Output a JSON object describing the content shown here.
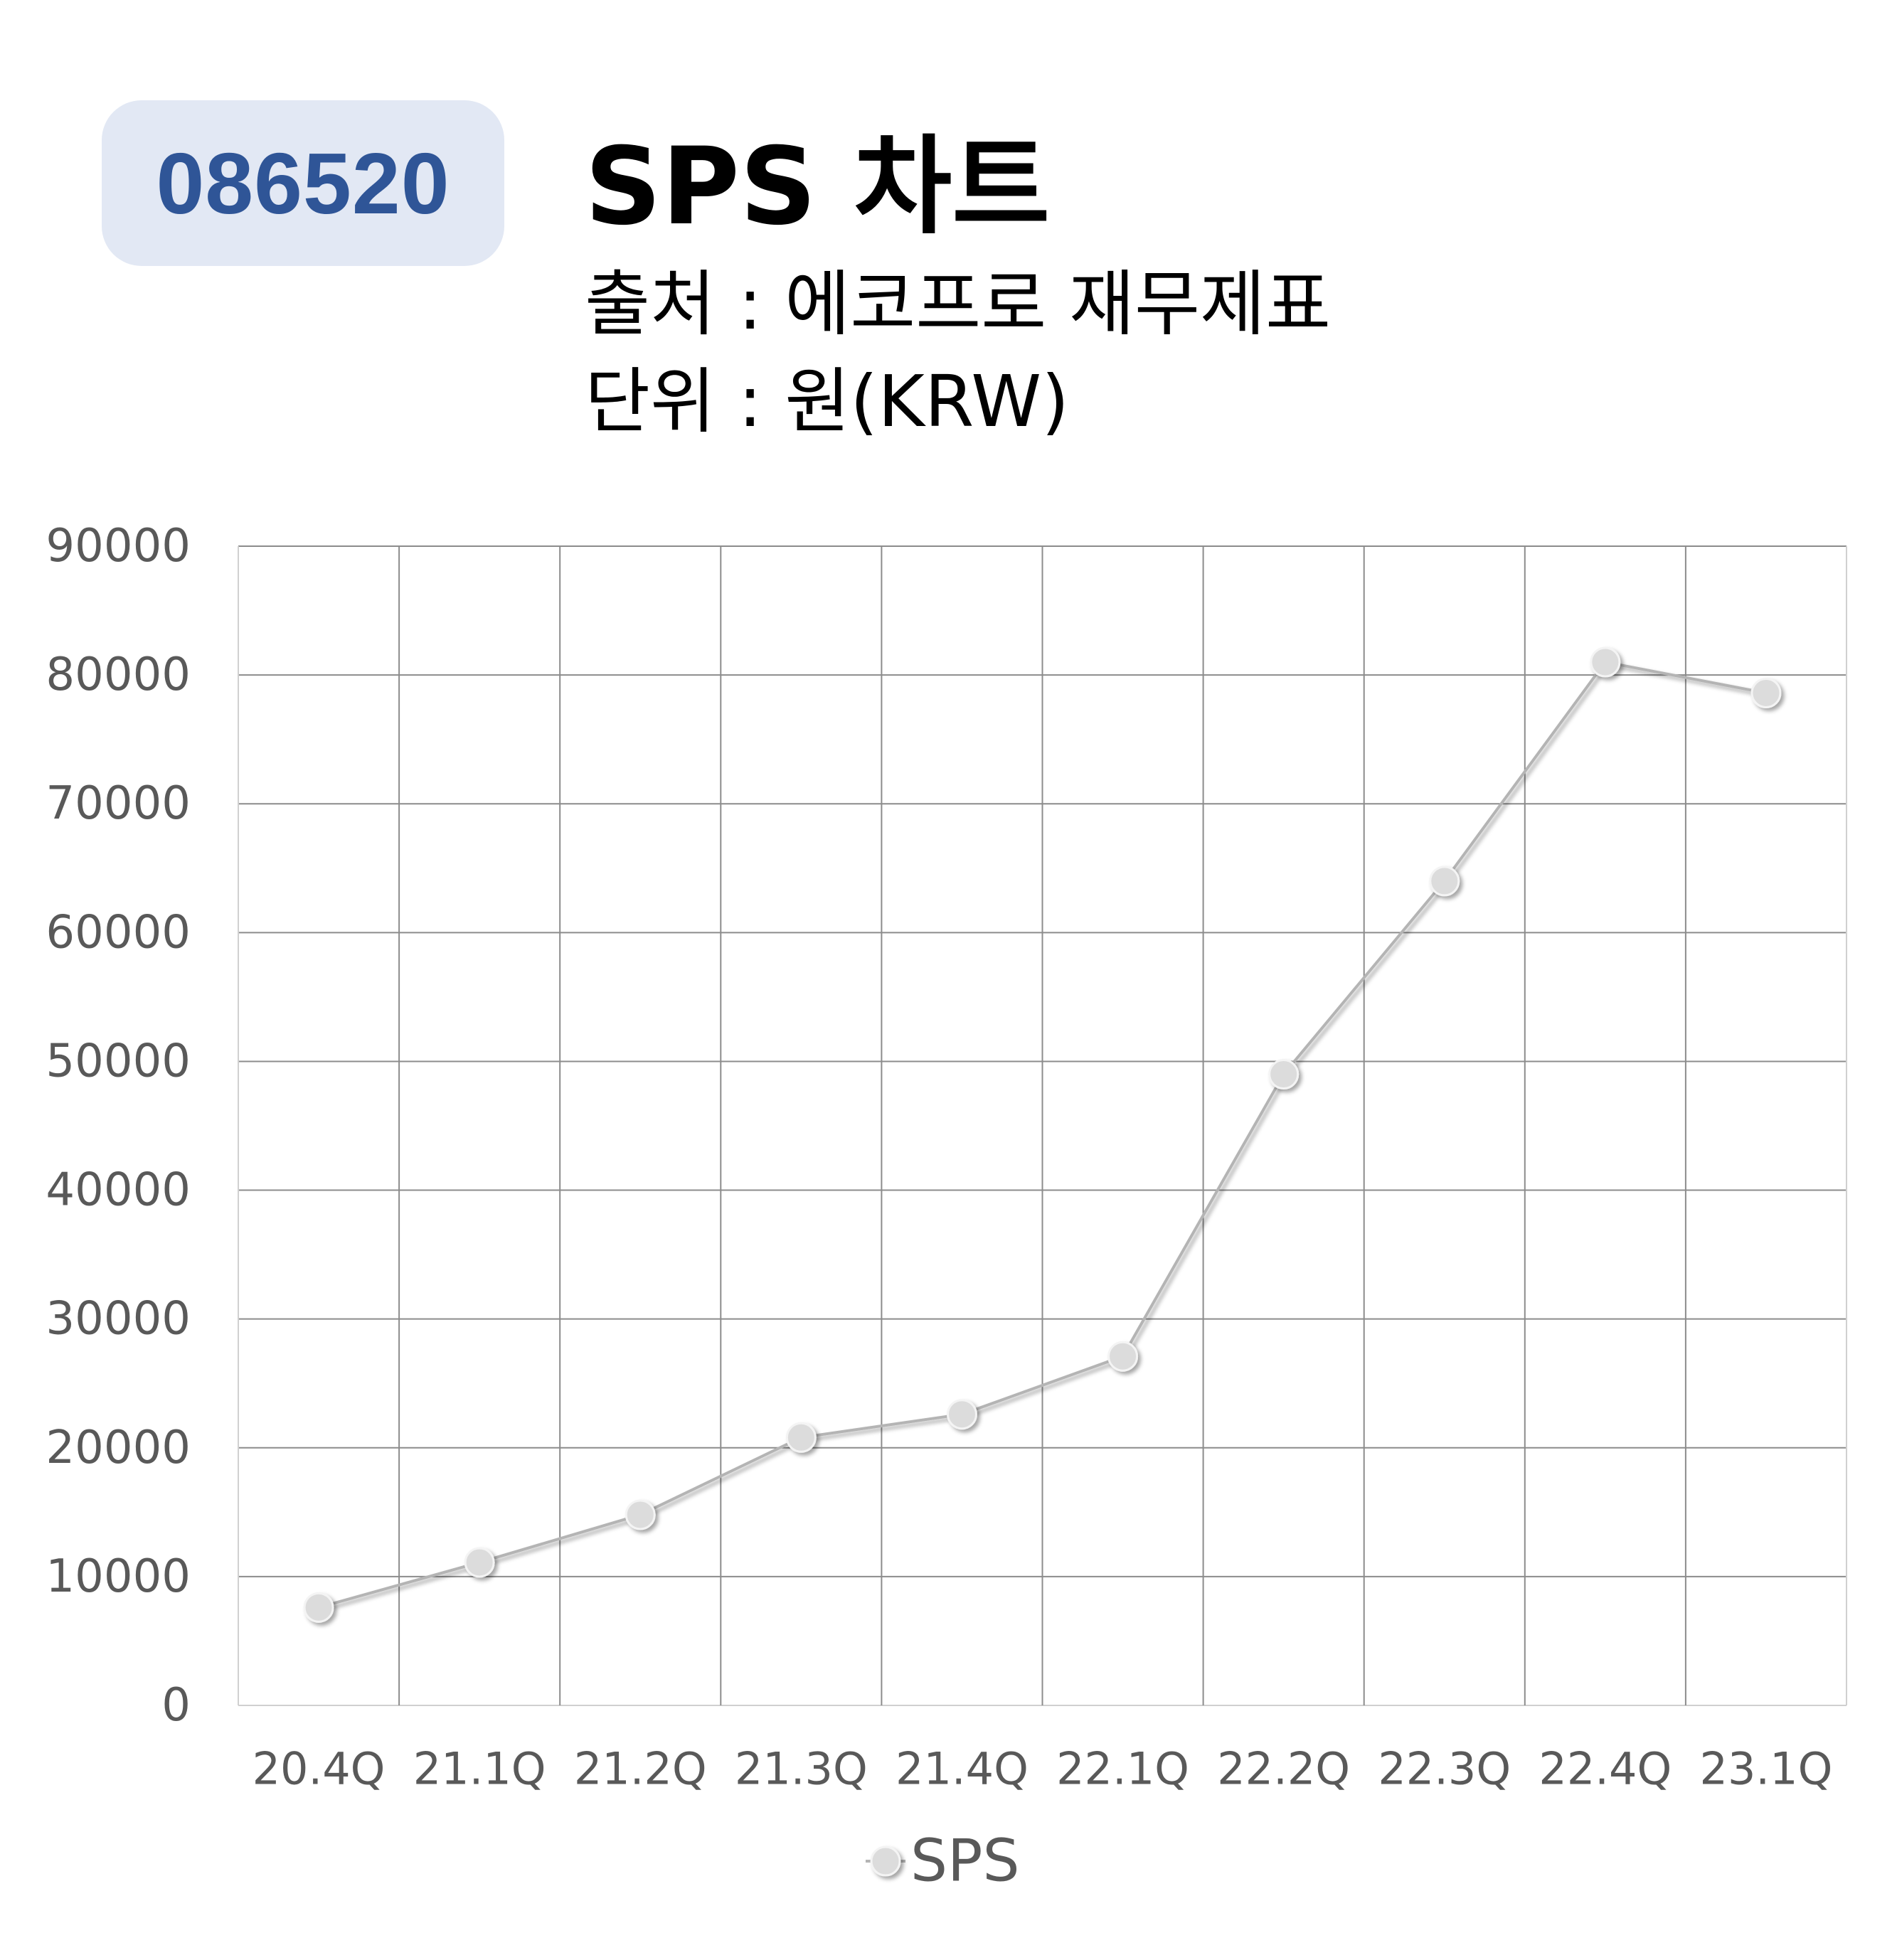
{
  "header": {
    "ticker": "086520",
    "title": "SPS 차트",
    "source": "출처 : 에코프로 재무제표",
    "unit": "단위 : 원(KRW)"
  },
  "colors": {
    "badge_background": "#e2e8f4",
    "badge_text": "#2f5597",
    "series_line": "#b4b4b4",
    "marker_fill": "#dcdcdc",
    "grid": "#8c8c8c",
    "axis_text": "#595959"
  },
  "chart_data": {
    "type": "line",
    "title": "",
    "xlabel": "",
    "ylabel": "",
    "categories": [
      "20.4Q",
      "21.1Q",
      "21.2Q",
      "21.3Q",
      "21.4Q",
      "22.1Q",
      "22.2Q",
      "22.3Q",
      "22.4Q",
      "23.1Q"
    ],
    "series": [
      {
        "name": "SPS",
        "values": [
          7600,
          11100,
          14800,
          20800,
          22600,
          27100,
          49000,
          64000,
          81000,
          78600
        ]
      }
    ],
    "ylim": [
      0,
      90000
    ],
    "yticks": [
      "0",
      "10000",
      "20000",
      "30000",
      "40000",
      "50000",
      "60000",
      "70000",
      "80000",
      "90000"
    ],
    "grid": true,
    "legend": "bottom-center",
    "marker": "circle"
  }
}
